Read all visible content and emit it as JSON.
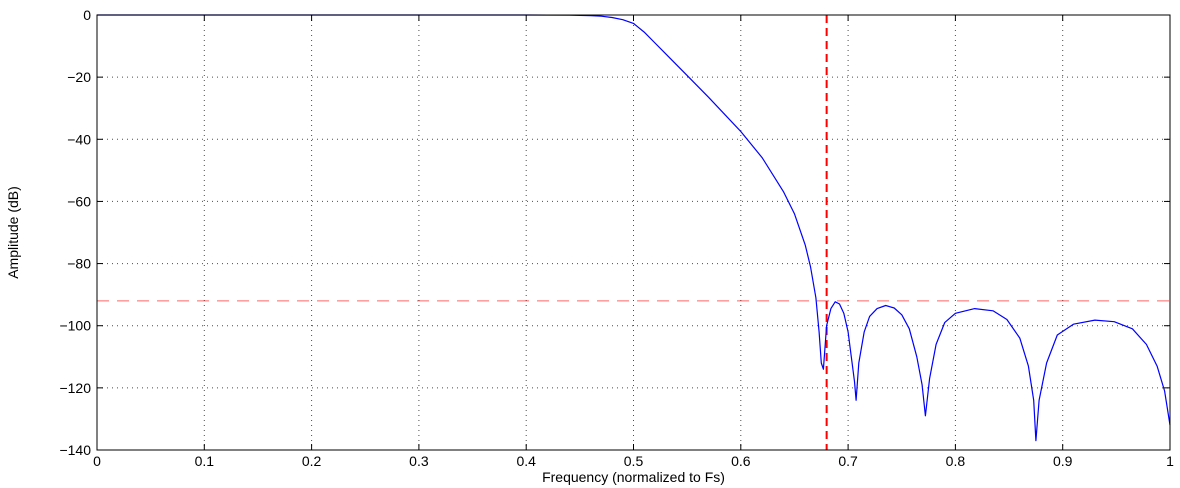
{
  "chart_data": {
    "type": "line",
    "xlabel": "Frequency (normalized to Fs)",
    "ylabel": "Amplitude (dB)",
    "xlim": [
      0,
      1
    ],
    "ylim": [
      -140,
      0
    ],
    "xticks": [
      0,
      0.1,
      0.2,
      0.3,
      0.4,
      0.5,
      0.6,
      0.7,
      0.8,
      0.9,
      1
    ],
    "xtick_labels": [
      "0",
      "0.1",
      "0.2",
      "0.3",
      "0.4",
      "0.5",
      "0.6",
      "0.7",
      "0.8",
      "0.9",
      "1"
    ],
    "yticks": [
      0,
      -20,
      -40,
      -60,
      -80,
      -100,
      -120,
      -140
    ],
    "ytick_labels": [
      "0",
      "−20",
      "−40",
      "−60",
      "−80",
      "−100",
      "−120",
      "−140"
    ],
    "grid": true,
    "series": [
      {
        "color": "#0000ff",
        "x": [
          0,
          0.1,
          0.2,
          0.3,
          0.4,
          0.44,
          0.46,
          0.47,
          0.48,
          0.49,
          0.5,
          0.51,
          0.52,
          0.53,
          0.55,
          0.57,
          0.6,
          0.62,
          0.64,
          0.65,
          0.66,
          0.665,
          0.67,
          0.673,
          0.675,
          0.677,
          0.68,
          0.684,
          0.688,
          0.692,
          0.696,
          0.7,
          0.703,
          0.706,
          0.7075,
          0.71,
          0.715,
          0.72,
          0.727,
          0.735,
          0.743,
          0.75,
          0.757,
          0.764,
          0.769,
          0.772,
          0.776,
          0.782,
          0.79,
          0.8,
          0.818,
          0.835,
          0.848,
          0.86,
          0.868,
          0.873,
          0.875,
          0.878,
          0.885,
          0.895,
          0.91,
          0.93,
          0.948,
          0.965,
          0.978,
          0.988,
          0.995,
          1.0
        ],
        "y": [
          0,
          0,
          0,
          0,
          0,
          -0.05,
          -0.2,
          -0.4,
          -0.8,
          -1.5,
          -2.7,
          -5.5,
          -9,
          -12.5,
          -19.5,
          -26.5,
          -37.5,
          -46,
          -57,
          -64,
          -74,
          -81,
          -91,
          -102,
          -112,
          -114,
          -100,
          -94.5,
          -92.3,
          -93,
          -96,
          -102,
          -110,
          -118,
          -124,
          -112,
          -102,
          -97,
          -94.5,
          -93.5,
          -94.3,
          -96.5,
          -101,
          -110,
          -119,
          -129,
          -117,
          -106,
          -99,
          -96,
          -94.5,
          -95.2,
          -98,
          -104,
          -113,
          -124,
          -137,
          -124,
          -112,
          -103,
          -99.5,
          -98.2,
          -98.7,
          -101,
          -106,
          -113,
          -121,
          -132
        ]
      }
    ],
    "reference_lines": [
      {
        "orientation": "horizontal",
        "value": -92,
        "color": "#ff0000"
      },
      {
        "orientation": "vertical",
        "value": 0.68,
        "color": "#ff0000"
      }
    ]
  }
}
